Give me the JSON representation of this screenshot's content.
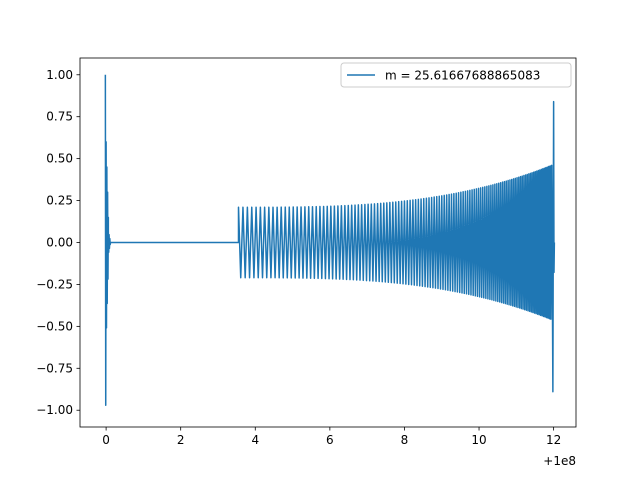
{
  "chart_data": {
    "type": "line",
    "title": "",
    "xlabel": "",
    "ylabel": "",
    "x_offset_label": "+1e8",
    "xlim": [
      -0.7,
      12.6
    ],
    "ylim": [
      -1.1,
      1.1
    ],
    "x_ticks": [
      0,
      2,
      4,
      6,
      8,
      10,
      12
    ],
    "x_tick_labels": [
      "0",
      "2",
      "4",
      "6",
      "8",
      "10",
      "12"
    ],
    "y_ticks": [
      -1.0,
      -0.75,
      -0.5,
      -0.25,
      0.0,
      0.25,
      0.5,
      0.75,
      1.0
    ],
    "y_tick_labels": [
      "−1.00",
      "−0.75",
      "−0.50",
      "−0.25",
      "0.00",
      "0.25",
      "0.50",
      "0.75",
      "1.00"
    ],
    "grid": false,
    "legend_position": "top-right",
    "series": [
      {
        "name": "m = 25.61667688865083",
        "color": "#1f77b4",
        "segments": [
          {
            "kind": "burst",
            "x_start": -0.02,
            "x_end": 0.06,
            "y_max": 1.0,
            "y_min": -0.97
          },
          {
            "kind": "ringdown",
            "x_start": 0.06,
            "x_end": 0.12,
            "amplitude": 0.07
          },
          {
            "kind": "flat",
            "x_start": 0.12,
            "x_end": 3.55,
            "y": 0.0
          },
          {
            "kind": "chirp",
            "x_start": 3.55,
            "x_end": 11.95,
            "amp_start": 0.21,
            "amp_end": 0.46,
            "peak_x": 12.0,
            "peak_max": 0.84,
            "peak_min": -0.89
          }
        ]
      }
    ]
  }
}
